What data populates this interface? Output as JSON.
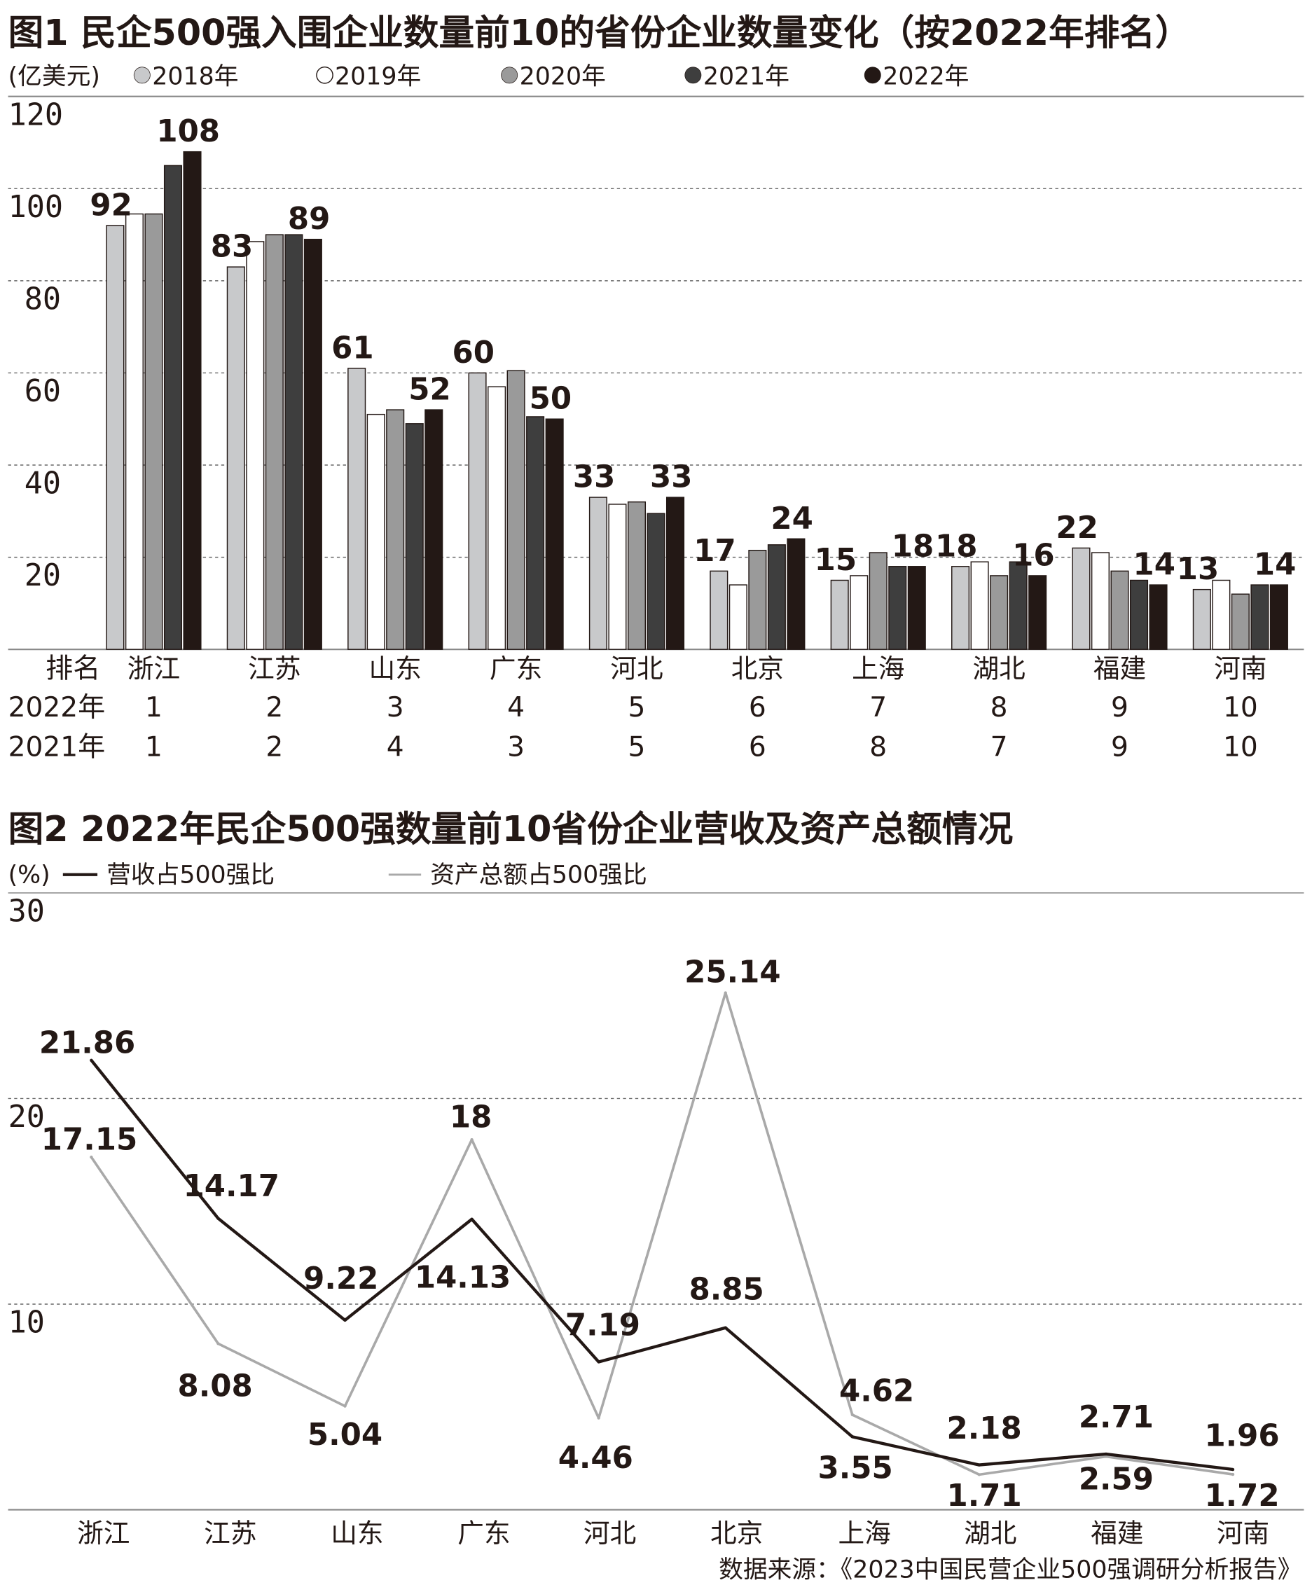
{
  "chart_data": [
    {
      "type": "bar",
      "title": "图1 民企500强入围企业数量前10的省份企业数量变化（按2022年排名）",
      "unit_label": "(亿美元)",
      "ylim": [
        0,
        120
      ],
      "yticks": [
        20,
        40,
        60,
        80,
        100,
        120
      ],
      "grid": true,
      "legend_position": "top-left",
      "categories": [
        "浙江",
        "江苏",
        "山东",
        "广东",
        "河北",
        "北京",
        "上海",
        "湖北",
        "福建",
        "河南"
      ],
      "series": [
        {
          "name": "2018年",
          "color": "#c8c9cb",
          "values": [
            92,
            83,
            61,
            60,
            33,
            17,
            15,
            18,
            22,
            13
          ]
        },
        {
          "name": "2019年",
          "color": "#ffffff",
          "values": [
            94.5,
            88.5,
            51,
            57,
            31.5,
            14,
            16,
            19,
            21,
            15
          ]
        },
        {
          "name": "2020年",
          "color": "#9a9a9a",
          "values": [
            94.5,
            90,
            52,
            60.5,
            32,
            21.5,
            21,
            16,
            17,
            12
          ]
        },
        {
          "name": "2021年",
          "color": "#3e3e3e",
          "values": [
            105,
            90,
            49,
            50.5,
            29.5,
            22.7,
            18,
            19,
            15,
            14
          ]
        },
        {
          "name": "2022年",
          "color": "#231815",
          "values": [
            108,
            89,
            52,
            50,
            33,
            24,
            18,
            16,
            14,
            14
          ]
        }
      ],
      "rank_table": {
        "header_label": "排名",
        "rows": [
          {
            "label": "2022年",
            "values": [
              "1",
              "2",
              "3",
              "4",
              "5",
              "6",
              "7",
              "8",
              "9",
              "10"
            ]
          },
          {
            "label": "2021年",
            "values": [
              "1",
              "2",
              "4",
              "3",
              "5",
              "6",
              "8",
              "7",
              "9",
              "10"
            ]
          }
        ]
      }
    },
    {
      "type": "line",
      "title": "图2 2022年民企500强数量前10省份企业营收及资产总额情况",
      "unit_label": "(%)",
      "ylim": [
        0,
        30
      ],
      "yticks": [
        10,
        20,
        30
      ],
      "grid": true,
      "legend_position": "top-left",
      "categories": [
        "浙江",
        "江苏",
        "山东",
        "广东",
        "河北",
        "北京",
        "上海",
        "湖北",
        "福建",
        "河南"
      ],
      "series": [
        {
          "name": "营收占500强比",
          "color": "#231815",
          "values": [
            21.86,
            14.17,
            9.22,
            14.13,
            7.19,
            8.85,
            3.55,
            2.18,
            2.71,
            1.96
          ]
        },
        {
          "name": "资产总额占500强比",
          "color": "#a9a9a9",
          "values": [
            17.15,
            8.08,
            5.04,
            18,
            4.46,
            25.14,
            4.62,
            1.71,
            2.59,
            1.72
          ]
        }
      ]
    }
  ],
  "source": "数据来源：《2023中国民营企业500强调研分析报告》"
}
